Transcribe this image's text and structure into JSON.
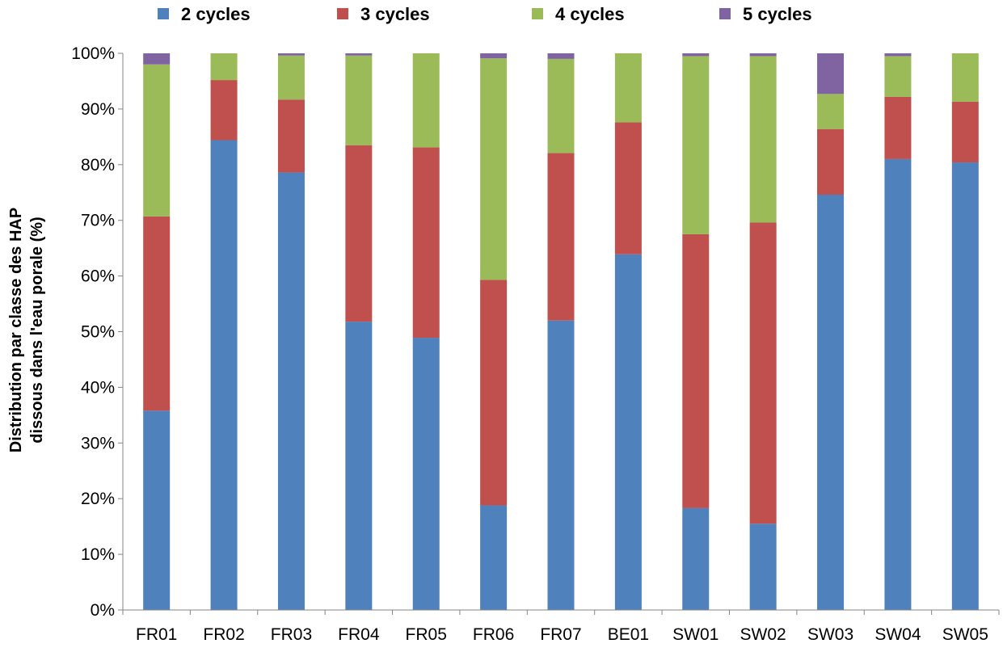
{
  "chart_data": {
    "type": "bar",
    "stacked": true,
    "percent": true,
    "title": "",
    "xlabel": "",
    "ylabel_lines": [
      "Distribution par classe des HAP",
      "dissous dans l'eau porale (%)"
    ],
    "ylim": [
      0,
      100
    ],
    "yticks": [
      "0%",
      "10%",
      "20%",
      "30%",
      "40%",
      "50%",
      "60%",
      "70%",
      "80%",
      "90%",
      "100%"
    ],
    "grid": false,
    "legend_position": "top",
    "categories": [
      "FR01",
      "FR02",
      "FR03",
      "FR04",
      "FR05",
      "FR06",
      "FR07",
      "BE01",
      "SW01",
      "SW02",
      "SW03",
      "SW04",
      "SW05"
    ],
    "series": [
      {
        "name": "2 cycles",
        "color": "#4F81BD",
        "values": [
          35.8,
          84.4,
          78.6,
          51.8,
          48.9,
          18.8,
          52.0,
          63.9,
          18.3,
          15.5,
          74.6,
          81.0,
          80.4
        ]
      },
      {
        "name": "3 cycles",
        "color": "#C0504D",
        "values": [
          34.9,
          10.8,
          13.1,
          31.7,
          34.2,
          40.5,
          30.1,
          23.7,
          49.2,
          54.1,
          11.8,
          11.2,
          10.9
        ]
      },
      {
        "name": "4 cycles",
        "color": "#9BBB59",
        "values": [
          27.3,
          4.8,
          7.9,
          16.1,
          16.9,
          39.8,
          16.9,
          12.4,
          32.0,
          29.9,
          6.3,
          7.3,
          8.7
        ]
      },
      {
        "name": "5 cycles",
        "color": "#8064A2",
        "values": [
          2.0,
          0.0,
          0.4,
          0.4,
          0.0,
          0.9,
          1.0,
          0.0,
          0.5,
          0.5,
          7.3,
          0.5,
          0.0
        ]
      }
    ]
  }
}
